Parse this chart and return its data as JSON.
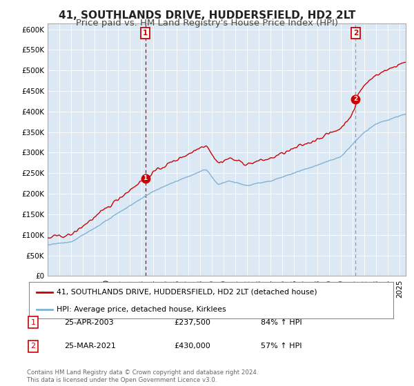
{
  "title": "41, SOUTHLANDS DRIVE, HUDDERSFIELD, HD2 2LT",
  "subtitle": "Price paid vs. HM Land Registry's House Price Index (HPI)",
  "title_fontsize": 11,
  "subtitle_fontsize": 9.5,
  "ylabel_ticks": [
    "£0",
    "£50K",
    "£100K",
    "£150K",
    "£200K",
    "£250K",
    "£300K",
    "£350K",
    "£400K",
    "£450K",
    "£500K",
    "£550K",
    "£600K"
  ],
  "ytick_values": [
    0,
    50000,
    100000,
    150000,
    200000,
    250000,
    300000,
    350000,
    400000,
    450000,
    500000,
    550000,
    600000
  ],
  "ylim": [
    0,
    615000
  ],
  "red_line_color": "#cc0000",
  "blue_line_color": "#7fb3d3",
  "vline1_color": "#cc0000",
  "vline2_color": "#999999",
  "marker1_date_x": 2003.32,
  "marker1_price": 237500,
  "marker2_date_x": 2021.23,
  "marker2_price": 430000,
  "vline1_x": 2003.32,
  "vline2_x": 2021.23,
  "legend_red_label": "41, SOUTHLANDS DRIVE, HUDDERSFIELD, HD2 2LT (detached house)",
  "legend_blue_label": "HPI: Average price, detached house, Kirklees",
  "table_rows": [
    {
      "num": "1",
      "date": "25-APR-2003",
      "price": "£237,500",
      "pct": "84% ↑ HPI"
    },
    {
      "num": "2",
      "date": "25-MAR-2021",
      "price": "£430,000",
      "pct": "57% ↑ HPI"
    }
  ],
  "footnote": "Contains HM Land Registry data © Crown copyright and database right 2024.\nThis data is licensed under the Open Government Licence v3.0.",
  "background_color": "#ffffff",
  "plot_bg_color": "#dce9f5",
  "grid_color": "#ffffff",
  "xmin": 1995.0,
  "xmax": 2025.5
}
